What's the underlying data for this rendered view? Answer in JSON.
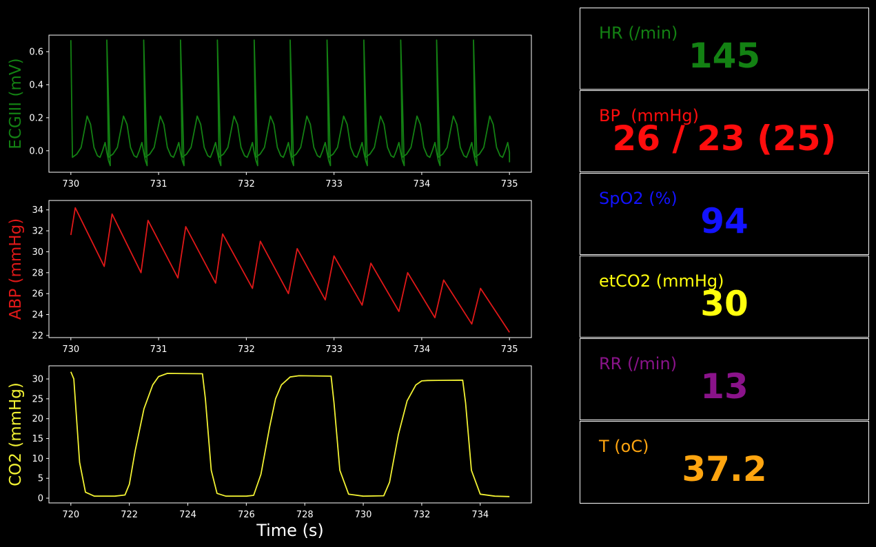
{
  "charts": [
    {
      "ylabel": "ECGIII (mV)",
      "color": "#138113",
      "xlim": [
        729.75,
        735.25
      ],
      "ylim": [
        -0.13,
        0.7
      ],
      "xticks": [
        730,
        731,
        732,
        733,
        734,
        735
      ],
      "yticks": [
        0.0,
        0.2,
        0.4,
        0.6
      ],
      "ytick_labels": [
        "0.0",
        "0.2",
        "0.4",
        "0.6"
      ],
      "show_xlabel": false
    },
    {
      "ylabel": "ABP (mmHg)",
      "color": "#e01818",
      "xlim": [
        729.75,
        735.25
      ],
      "ylim": [
        21.8,
        34.9
      ],
      "xticks": [
        730,
        731,
        732,
        733,
        734,
        735
      ],
      "yticks": [
        22,
        24,
        26,
        28,
        30,
        32,
        34
      ],
      "ytick_labels": [
        "22",
        "24",
        "26",
        "28",
        "30",
        "32",
        "34"
      ],
      "show_xlabel": false
    },
    {
      "ylabel": "CO2 (mmHg)",
      "color": "#f2f233",
      "xlim": [
        719.25,
        735.75
      ],
      "ylim": [
        -1.2,
        33.3
      ],
      "xticks": [
        720,
        722,
        724,
        726,
        728,
        730,
        732,
        734
      ],
      "yticks": [
        0,
        5,
        10,
        15,
        20,
        25,
        30
      ],
      "ytick_labels": [
        "0",
        "5",
        "10",
        "15",
        "20",
        "25",
        "30"
      ],
      "show_xlabel": true
    }
  ],
  "xlabel": "Time (s)",
  "chart_data": [
    {
      "type": "line",
      "ylabel": "ECGIII (mV)",
      "xlim": [
        729.75,
        735.25
      ],
      "ylim": [
        -0.13,
        0.7
      ],
      "beat_times": [
        730.0,
        730.41,
        730.83,
        731.25,
        731.67,
        732.09,
        732.5,
        732.92,
        733.34,
        733.76,
        734.17,
        734.59
      ],
      "r_peak_mv": 0.67,
      "t_wave_mv": 0.21,
      "baseline_mv": -0.04,
      "s_trough_mv": -0.09,
      "x": [
        730.0,
        730.02,
        730.1,
        730.2,
        730.3,
        730.35,
        730.39,
        730.41,
        730.43,
        730.6,
        730.8
      ],
      "y": [
        0.67,
        -0.04,
        0.0,
        0.21,
        -0.02,
        0.05,
        -0.09,
        0.67,
        -0.04,
        0.21,
        -0.09
      ]
    },
    {
      "type": "line",
      "ylabel": "ABP (mmHg)",
      "xlim": [
        729.75,
        735.25
      ],
      "ylim": [
        21.8,
        34.9
      ],
      "x": [
        730.0,
        730.05,
        730.38,
        730.47,
        730.8,
        730.88,
        731.22,
        731.31,
        731.65,
        731.73,
        732.07,
        732.16,
        732.48,
        732.58,
        732.9,
        733.0,
        733.32,
        733.42,
        733.74,
        733.84,
        734.15,
        734.25,
        734.57,
        734.67,
        735.0
      ],
      "y": [
        31.6,
        34.2,
        28.6,
        33.6,
        28.0,
        33.0,
        27.5,
        32.4,
        27.0,
        31.7,
        26.5,
        31.0,
        26.0,
        30.3,
        25.4,
        29.6,
        24.9,
        28.9,
        24.3,
        28.0,
        23.7,
        27.3,
        23.1,
        26.5,
        22.3
      ]
    },
    {
      "type": "line",
      "ylabel": "CO2 (mmHg)",
      "xlabel": "Time (s)",
      "xlim": [
        719.25,
        735.75
      ],
      "ylim": [
        -1.2,
        33.3
      ],
      "x": [
        720.0,
        720.1,
        720.3,
        720.5,
        720.8,
        721.5,
        721.85,
        722.0,
        722.2,
        722.5,
        722.8,
        723.0,
        723.3,
        724.5,
        724.6,
        724.8,
        725.0,
        725.3,
        726.0,
        726.25,
        726.5,
        726.8,
        727.0,
        727.2,
        727.5,
        727.8,
        728.9,
        729.0,
        729.2,
        729.5,
        730.0,
        730.7,
        730.9,
        731.2,
        731.5,
        731.8,
        732.0,
        732.2,
        733.4,
        733.5,
        733.7,
        734.0,
        734.5,
        735.0
      ],
      "y": [
        31.8,
        30.0,
        9.0,
        1.5,
        0.5,
        0.5,
        0.8,
        3.5,
        12.0,
        22.5,
        28.5,
        30.6,
        31.4,
        31.3,
        25.0,
        7.0,
        1.2,
        0.5,
        0.5,
        0.7,
        6.0,
        18.0,
        25.0,
        28.5,
        30.5,
        30.8,
        30.7,
        24.0,
        7.0,
        1.0,
        0.5,
        0.6,
        4.0,
        16.0,
        24.5,
        28.5,
        29.5,
        29.6,
        29.7,
        24.0,
        7.0,
        1.0,
        0.5,
        0.4
      ]
    }
  ],
  "vitals": [
    {
      "label": "HR (/min)",
      "value": "145",
      "color": "#138113"
    },
    {
      "label": "BP  (mmHg)",
      "value": "26 / 23 (25)",
      "color": "#ff0d0d"
    },
    {
      "label": "SpO2 (%)",
      "value": "94",
      "color": "#1313ff"
    },
    {
      "label": "etCO2 (mmHg)",
      "value": "30",
      "color": "#ffff0d"
    },
    {
      "label": "RR (/min)",
      "value": "13",
      "color": "#8a138a"
    },
    {
      "label": "T (oC)",
      "value": "37.2",
      "color": "#ffa510"
    }
  ]
}
